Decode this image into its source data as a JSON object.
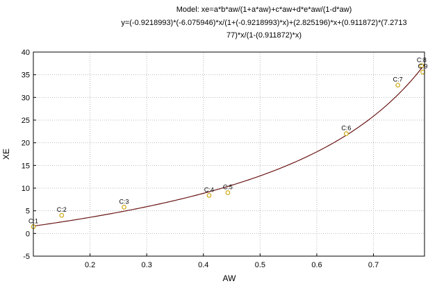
{
  "chart_data": {
    "type": "scatter",
    "title_lines": [
      "Model: xe=a*b*aw/(1+a*aw)+c*aw+d*e*aw/(1-d*aw)",
      "y=(-0.9218993)*(-6.075946)*x/(1+(-0.9218993)*x)+(2.825196)*x+(0.911872)*(7.2713",
      "77)*x/(1-(0.911872)*x)"
    ],
    "xlabel": "AW",
    "ylabel": "XE",
    "xlim": [
      0.1,
      0.79
    ],
    "ylim": [
      -5,
      40
    ],
    "x_ticks": [
      0.2,
      0.3,
      0.4,
      0.5,
      0.6,
      0.7
    ],
    "x_tick_labels": [
      "0.2",
      "0.3",
      "0.4",
      "0.5",
      "0.6",
      "0.7"
    ],
    "y_ticks": [
      -5,
      0,
      5,
      10,
      15,
      20,
      25,
      30,
      35,
      40
    ],
    "y_tick_labels": [
      "-5",
      "0",
      "5",
      "10",
      "15",
      "20",
      "25",
      "30",
      "35",
      "40"
    ],
    "grid": true,
    "point_color": "#c8a200",
    "curve_color": "#6b1414",
    "points": [
      {
        "label": "C:1",
        "x": 0.1,
        "y": 1.5
      },
      {
        "label": "C:2",
        "x": 0.15,
        "y": 4.0
      },
      {
        "label": "C:3",
        "x": 0.26,
        "y": 5.8
      },
      {
        "label": "C:4",
        "x": 0.41,
        "y": 8.4
      },
      {
        "label": "C:5",
        "x": 0.443,
        "y": 9.0
      },
      {
        "label": "C:6",
        "x": 0.652,
        "y": 22.0
      },
      {
        "label": "C:7",
        "x": 0.743,
        "y": 32.7
      },
      {
        "label": "C:8",
        "x": 0.785,
        "y": 37.0
      },
      {
        "label": "C:9",
        "x": 0.787,
        "y": 35.6
      }
    ],
    "fit": {
      "a": -0.9218993,
      "b": -6.075946,
      "c": 2.825196,
      "d": 0.911872,
      "e": 7.271377
    }
  }
}
